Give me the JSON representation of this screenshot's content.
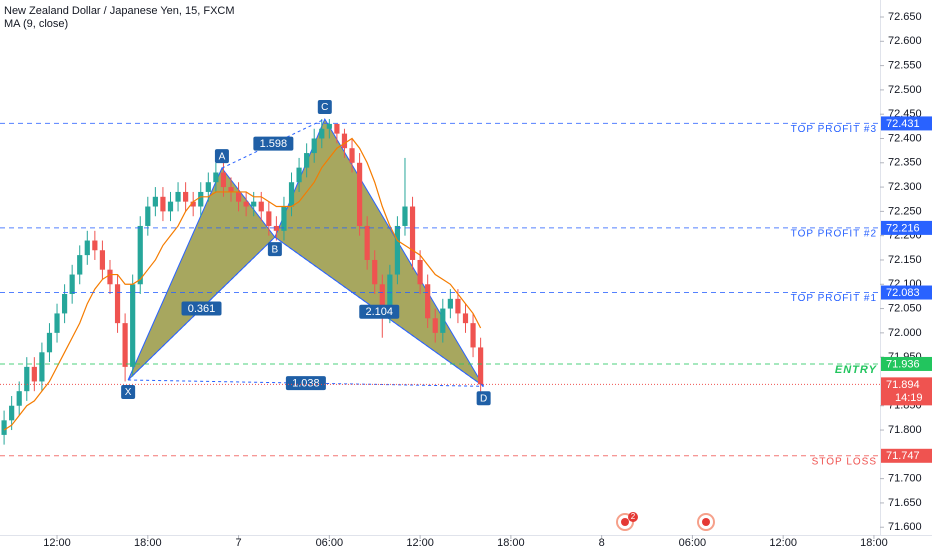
{
  "chart_data": {
    "type": "candlestick",
    "title": "New Zealand Dollar / Japanese Yen, 15, FXCM",
    "up_color": "#26a69a",
    "down_color": "#ef5350",
    "x": [
      8.5,
      9.0,
      9.5,
      10.0,
      10.5,
      11.0,
      11.5,
      12.0,
      12.5,
      13.0,
      13.5,
      14.0,
      14.5,
      15.0,
      15.5,
      16.0,
      16.5,
      17.0,
      17.5,
      18.0,
      18.5,
      19.0,
      19.5,
      20.0,
      20.5,
      21.0,
      21.5,
      22.0,
      22.5,
      23.0,
      23.5,
      24.0,
      24.5,
      25.0,
      25.5,
      26.0,
      26.5,
      27.0,
      27.5,
      28.0,
      28.5,
      29.0,
      29.5,
      30.0,
      30.5,
      31.0,
      31.5,
      32.0,
      32.5,
      33.0,
      33.5,
      34.0,
      34.5,
      35.0,
      35.5,
      36.0,
      36.5,
      37.0,
      37.5,
      38.0,
      38.5,
      39.0,
      39.5,
      40.0
    ],
    "open": [
      71.79,
      71.82,
      71.85,
      71.88,
      71.93,
      71.9,
      71.96,
      72.0,
      72.04,
      72.08,
      72.12,
      72.16,
      72.19,
      72.17,
      72.13,
      72.1,
      72.02,
      71.93,
      72.1,
      72.22,
      72.26,
      72.28,
      72.25,
      72.27,
      72.29,
      72.27,
      72.26,
      72.29,
      72.31,
      72.33,
      72.3,
      72.29,
      72.27,
      72.26,
      72.27,
      72.25,
      72.22,
      72.21,
      72.26,
      72.31,
      72.34,
      72.37,
      72.4,
      72.42,
      72.43,
      72.41,
      72.38,
      72.35,
      72.22,
      72.15,
      72.1,
      72.04,
      72.12,
      72.22,
      72.26,
      72.15,
      72.1,
      72.03,
      72.0,
      72.05,
      72.07,
      72.04,
      72.02,
      71.97
    ],
    "high": [
      71.84,
      71.87,
      71.9,
      71.95,
      71.95,
      71.98,
      72.02,
      72.06,
      72.1,
      72.14,
      72.18,
      72.21,
      72.21,
      72.19,
      72.15,
      72.12,
      72.04,
      72.12,
      72.24,
      72.28,
      72.3,
      72.3,
      72.29,
      72.31,
      72.31,
      72.29,
      72.31,
      72.33,
      72.35,
      72.35,
      72.32,
      72.31,
      72.29,
      72.29,
      72.29,
      72.27,
      72.24,
      72.28,
      72.33,
      72.36,
      72.39,
      72.42,
      72.44,
      72.44,
      72.43,
      72.42,
      72.4,
      72.37,
      72.24,
      72.17,
      72.12,
      72.14,
      72.24,
      72.36,
      72.28,
      72.17,
      72.12,
      72.05,
      72.07,
      72.09,
      72.09,
      72.06,
      72.04,
      71.99
    ],
    "low": [
      71.77,
      71.8,
      71.83,
      71.86,
      71.88,
      71.88,
      71.94,
      71.98,
      72.02,
      72.06,
      72.1,
      72.14,
      72.15,
      72.11,
      72.08,
      72.0,
      71.9,
      71.91,
      72.08,
      72.2,
      72.24,
      72.23,
      72.23,
      72.25,
      72.25,
      72.24,
      72.24,
      72.27,
      72.29,
      72.28,
      72.27,
      72.25,
      72.24,
      72.24,
      72.23,
      72.2,
      72.19,
      72.19,
      72.24,
      72.29,
      72.32,
      72.35,
      72.38,
      72.4,
      72.39,
      72.36,
      72.33,
      72.2,
      72.13,
      72.08,
      71.99,
      72.02,
      72.1,
      72.2,
      72.13,
      72.08,
      72.01,
      71.98,
      71.98,
      72.03,
      72.02,
      72.0,
      71.95,
      71.874
    ],
    "close": [
      71.82,
      71.85,
      71.88,
      71.93,
      71.9,
      71.96,
      72.0,
      72.04,
      72.08,
      72.12,
      72.16,
      72.19,
      72.17,
      72.13,
      72.1,
      72.02,
      71.93,
      72.1,
      72.22,
      72.26,
      72.28,
      72.25,
      72.27,
      72.29,
      72.27,
      72.26,
      72.29,
      72.31,
      72.33,
      72.3,
      72.29,
      72.27,
      72.26,
      72.27,
      72.25,
      72.22,
      72.21,
      72.26,
      72.31,
      72.34,
      72.37,
      72.4,
      72.42,
      72.43,
      72.41,
      72.38,
      72.35,
      72.22,
      72.15,
      72.1,
      72.04,
      72.12,
      72.22,
      72.26,
      72.15,
      72.1,
      72.03,
      72.0,
      72.05,
      72.07,
      72.04,
      72.02,
      71.97,
      71.894
    ],
    "ma": {
      "name": "MA (9, close)",
      "color": "#f57c00",
      "values": [
        71.8,
        71.81,
        71.83,
        71.85,
        71.86,
        71.88,
        71.9,
        71.93,
        71.96,
        71.99,
        72.02,
        72.06,
        72.09,
        72.11,
        72.12,
        72.12,
        72.1,
        72.1,
        72.11,
        72.13,
        72.15,
        72.18,
        72.2,
        72.22,
        72.25,
        72.27,
        72.28,
        72.28,
        72.29,
        72.29,
        72.29,
        72.29,
        72.29,
        72.28,
        72.28,
        72.27,
        72.26,
        72.26,
        72.26,
        72.27,
        72.29,
        72.31,
        72.34,
        72.36,
        72.38,
        72.39,
        72.4,
        72.38,
        72.35,
        72.31,
        72.26,
        72.22,
        72.19,
        72.18,
        72.17,
        72.16,
        72.14,
        72.12,
        72.11,
        72.1,
        72.08,
        72.06,
        72.04,
        72.01
      ]
    },
    "xlim": [
      8.23,
      66.4
    ],
    "xticks": [
      {
        "value": 12,
        "label": "12:00"
      },
      {
        "value": 18,
        "label": "18:00"
      },
      {
        "value": 24,
        "label": "7"
      },
      {
        "value": 30,
        "label": "06:00"
      },
      {
        "value": 36,
        "label": "12:00"
      },
      {
        "value": 42,
        "label": "18:00"
      },
      {
        "value": 48,
        "label": "8"
      },
      {
        "value": 54,
        "label": "06:00"
      },
      {
        "value": 60,
        "label": "12:00"
      },
      {
        "value": 66,
        "label": "18:00"
      }
    ],
    "ylim": [
      71.584,
      72.685
    ],
    "yticks": [
      {
        "value": 72.65,
        "label": "72.650"
      },
      {
        "value": 72.6,
        "label": "72.600"
      },
      {
        "value": 72.55,
        "label": "72.550"
      },
      {
        "value": 72.5,
        "label": "72.500"
      },
      {
        "value": 72.45,
        "label": "72.450"
      },
      {
        "value": 72.4,
        "label": "72.400"
      },
      {
        "value": 72.35,
        "label": "72.350"
      },
      {
        "value": 72.3,
        "label": "72.300"
      },
      {
        "value": 72.25,
        "label": "72.250"
      },
      {
        "value": 72.2,
        "label": "72.200"
      },
      {
        "value": 72.15,
        "label": "72.150"
      },
      {
        "value": 72.1,
        "label": "72.100"
      },
      {
        "value": 72.05,
        "label": "72.050"
      },
      {
        "value": 72.0,
        "label": "72.000"
      },
      {
        "value": 71.95,
        "label": "71.950"
      },
      {
        "value": 71.85,
        "label": "71.850"
      },
      {
        "value": 71.8,
        "label": "71.800"
      },
      {
        "value": 71.7,
        "label": "71.700"
      },
      {
        "value": 71.65,
        "label": "71.650"
      },
      {
        "value": 71.6,
        "label": "71.600"
      }
    ],
    "levels": [
      {
        "label": "TOP PROFIT #3",
        "value": 72.431,
        "color": "#2962ff"
      },
      {
        "label": "TOP PROFIT #2",
        "value": 72.216,
        "color": "#2962ff"
      },
      {
        "label": "TOP PROFIT #1",
        "value": 72.083,
        "color": "#2962ff"
      },
      {
        "label": "ENTRY",
        "value": 71.936,
        "color": "#22c55e"
      },
      {
        "label": "STOP LOSS",
        "value": 71.747,
        "color": "#ef5350"
      }
    ],
    "last_price": {
      "value": 71.894,
      "countdown": "14:19",
      "color": "#ef5350"
    },
    "pattern": {
      "fill": "#8a8a2a",
      "stroke": "#2962ff",
      "label_color": "#1f5fa6",
      "points": [
        {
          "label": "X",
          "x": 16.7,
          "y": 71.903
        },
        {
          "label": "A",
          "x": 22.9,
          "y": 72.339
        },
        {
          "label": "B",
          "x": 26.4,
          "y": 72.197
        },
        {
          "label": "C",
          "x": 29.7,
          "y": 72.44
        },
        {
          "label": "D",
          "x": 40.2,
          "y": 71.89
        }
      ],
      "ratios": [
        {
          "label": "0.361",
          "between": [
            "X",
            "B"
          ]
        },
        {
          "label": "1.598",
          "between": [
            "A",
            "C"
          ]
        },
        {
          "label": "2.104",
          "between": [
            "B",
            "D"
          ]
        },
        {
          "label": "1.038",
          "between": [
            "X",
            "D"
          ]
        }
      ]
    },
    "event_badge": "2"
  }
}
